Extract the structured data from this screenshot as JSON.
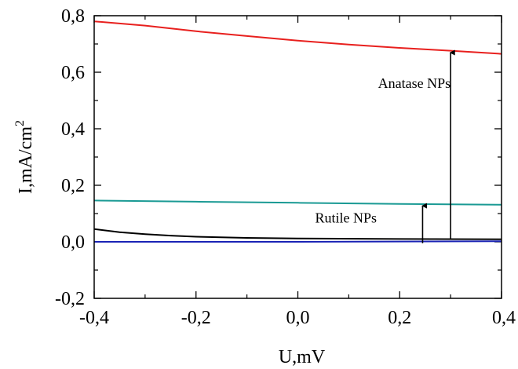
{
  "chart_data": {
    "type": "line",
    "xlabel": "U,mV",
    "ylabel": "I,mA/cm",
    "ylabel_sup": "2",
    "xlim": [
      -0.4,
      0.4
    ],
    "ylim": [
      -0.2,
      0.8
    ],
    "xticks": [
      {
        "value": -0.4,
        "label": "-0,4"
      },
      {
        "value": -0.2,
        "label": "-0,2"
      },
      {
        "value": 0.0,
        "label": "0,0"
      },
      {
        "value": 0.2,
        "label": "0,2"
      },
      {
        "value": 0.4,
        "label": "0,4"
      }
    ],
    "yticks": [
      {
        "value": -0.2,
        "label": "-0,2"
      },
      {
        "value": 0.0,
        "label": "0,0"
      },
      {
        "value": 0.2,
        "label": "0,2"
      },
      {
        "value": 0.4,
        "label": "0,4"
      },
      {
        "value": 0.6,
        "label": "0,6"
      },
      {
        "value": 0.8,
        "label": "0,8"
      }
    ],
    "grid": false,
    "series": [
      {
        "color": "#e8201e",
        "x": [
          -0.4,
          -0.3,
          -0.2,
          -0.1,
          0.0,
          0.1,
          0.2,
          0.3,
          0.4
        ],
        "y": [
          0.78,
          0.765,
          0.745,
          0.728,
          0.712,
          0.698,
          0.686,
          0.676,
          0.665
        ]
      },
      {
        "color": "#1a9a94",
        "x": [
          -0.4,
          -0.2,
          0.0,
          0.2,
          0.4
        ],
        "y": [
          0.146,
          0.142,
          0.138,
          0.134,
          0.131
        ]
      },
      {
        "color": "#000000",
        "x": [
          -0.4,
          -0.35,
          -0.3,
          -0.25,
          -0.2,
          -0.1,
          0.0,
          0.2,
          0.4
        ],
        "y": [
          0.045,
          0.034,
          0.027,
          0.022,
          0.018,
          0.014,
          0.012,
          0.01,
          0.009
        ]
      },
      {
        "color": "#1a23b5",
        "x": [
          -0.4,
          0.0,
          0.4
        ],
        "y": [
          0.0,
          0.0,
          0.002
        ]
      }
    ],
    "annotations": [
      {
        "text": "Anatase NPs",
        "x": 0.3,
        "y": 0.545,
        "arrow": {
          "x": 0.3,
          "y_from": 0.007,
          "y_to": 0.675
        }
      },
      {
        "text": "Rutile NPs",
        "x": 0.155,
        "y": 0.068,
        "arrow": {
          "x": 0.245,
          "y_from": -0.005,
          "y_to": 0.133
        }
      }
    ]
  }
}
